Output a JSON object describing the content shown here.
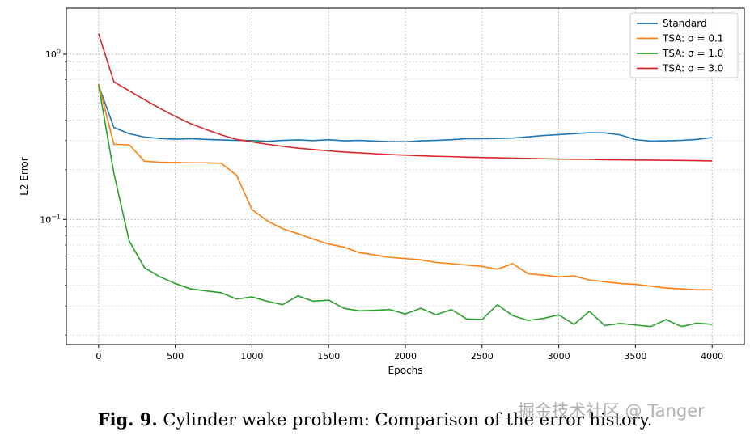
{
  "chart_data": {
    "type": "line",
    "xlabel": "Epochs",
    "ylabel": "L2 Error",
    "yscale": "log",
    "xlim": [
      -210,
      4210
    ],
    "ylim": [
      0.0175,
      1.9
    ],
    "x_ticks": [
      0,
      500,
      1000,
      1500,
      2000,
      2500,
      3000,
      3500,
      4000
    ],
    "y_ticks": [
      {
        "value": 1,
        "label": "10^0"
      },
      {
        "value": 0.1,
        "label": "10^-1"
      }
    ],
    "grid": true,
    "legend_position": "top-right",
    "series": [
      {
        "name": "Standard",
        "color": "#1f77b4",
        "x": [
          0,
          100,
          200,
          300,
          400,
          500,
          600,
          700,
          800,
          900,
          1000,
          1100,
          1200,
          1300,
          1400,
          1500,
          1600,
          1700,
          1800,
          1900,
          2000,
          2100,
          2200,
          2300,
          2400,
          2500,
          2600,
          2700,
          2800,
          2900,
          3000,
          3100,
          3200,
          3300,
          3400,
          3500,
          3600,
          3700,
          3800,
          3900,
          4000
        ],
        "y": [
          0.65,
          0.36,
          0.33,
          0.315,
          0.309,
          0.306,
          0.308,
          0.305,
          0.303,
          0.301,
          0.3,
          0.297,
          0.301,
          0.303,
          0.3,
          0.304,
          0.299,
          0.301,
          0.298,
          0.296,
          0.295,
          0.299,
          0.301,
          0.304,
          0.308,
          0.308,
          0.309,
          0.311,
          0.316,
          0.322,
          0.326,
          0.33,
          0.335,
          0.334,
          0.325,
          0.304,
          0.298,
          0.299,
          0.301,
          0.305,
          0.313
        ]
      },
      {
        "name": "TSA: σ = 0.1",
        "color": "#ff7f0e",
        "x": [
          0,
          100,
          200,
          300,
          400,
          500,
          600,
          700,
          800,
          900,
          1000,
          1100,
          1200,
          1300,
          1400,
          1500,
          1600,
          1700,
          1800,
          1900,
          2000,
          2100,
          2200,
          2300,
          2400,
          2500,
          2600,
          2700,
          2800,
          2900,
          3000,
          3100,
          3200,
          3300,
          3400,
          3500,
          3600,
          3700,
          3800,
          3900,
          4000
        ],
        "y": [
          0.66,
          0.285,
          0.283,
          0.225,
          0.222,
          0.221,
          0.22,
          0.22,
          0.219,
          0.185,
          0.115,
          0.098,
          0.088,
          0.082,
          0.076,
          0.071,
          0.068,
          0.063,
          0.061,
          0.059,
          0.058,
          0.057,
          0.055,
          0.054,
          0.053,
          0.052,
          0.05,
          0.054,
          0.047,
          0.046,
          0.045,
          0.0455,
          0.043,
          0.042,
          0.041,
          0.0405,
          0.0395,
          0.0385,
          0.038,
          0.0375,
          0.0375
        ]
      },
      {
        "name": "TSA: σ = 1.0",
        "color": "#2ca02c",
        "x": [
          0,
          100,
          200,
          300,
          400,
          500,
          600,
          700,
          800,
          900,
          1000,
          1100,
          1200,
          1300,
          1400,
          1500,
          1600,
          1700,
          1800,
          1900,
          2000,
          2100,
          2200,
          2300,
          2400,
          2500,
          2600,
          2700,
          2800,
          2900,
          3000,
          3100,
          3200,
          3300,
          3400,
          3500,
          3600,
          3700,
          3800,
          3900,
          4000
        ],
        "y": [
          0.65,
          0.19,
          0.074,
          0.051,
          0.045,
          0.041,
          0.038,
          0.037,
          0.036,
          0.033,
          0.034,
          0.032,
          0.0305,
          0.0345,
          0.032,
          0.0325,
          0.029,
          0.028,
          0.0282,
          0.0285,
          0.0268,
          0.029,
          0.0265,
          0.0285,
          0.025,
          0.0248,
          0.0305,
          0.0262,
          0.0245,
          0.0252,
          0.0265,
          0.0232,
          0.0278,
          0.0228,
          0.0235,
          0.023,
          0.0225,
          0.0248,
          0.0225,
          0.0236,
          0.0232
        ]
      },
      {
        "name": "TSA: σ = 3.0",
        "color": "#d62728",
        "x": [
          0,
          100,
          200,
          300,
          400,
          500,
          600,
          700,
          800,
          900,
          1000,
          1100,
          1200,
          1300,
          1400,
          1500,
          1600,
          1700,
          1800,
          1900,
          2000,
          2100,
          2200,
          2300,
          2400,
          2500,
          2600,
          2700,
          2800,
          2900,
          3000,
          3100,
          3200,
          3300,
          3400,
          3500,
          3600,
          3700,
          3800,
          3900,
          4000
        ],
        "y": [
          1.33,
          0.68,
          0.6,
          0.53,
          0.47,
          0.42,
          0.38,
          0.35,
          0.325,
          0.305,
          0.295,
          0.285,
          0.277,
          0.27,
          0.265,
          0.26,
          0.256,
          0.253,
          0.25,
          0.247,
          0.245,
          0.243,
          0.241,
          0.24,
          0.238,
          0.237,
          0.236,
          0.235,
          0.234,
          0.233,
          0.232,
          0.2315,
          0.231,
          0.23,
          0.2295,
          0.229,
          0.2285,
          0.228,
          0.2275,
          0.227,
          0.226
        ]
      }
    ]
  },
  "caption": {
    "label": "Fig. 9.",
    "text": " Cylinder wake problem: Comparison of the error history."
  },
  "watermark": "掘金技术社区 @ Tanger"
}
